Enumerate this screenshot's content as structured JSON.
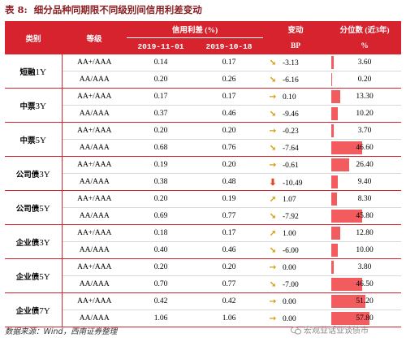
{
  "caption": {
    "label": "表 8:",
    "title": "细分品种同期限不同级别间信用利差变动"
  },
  "header": {
    "category": "类别",
    "grade": "等级",
    "spread": "信用利差 (%)",
    "date1": "2019-11-01",
    "date2": "2019-10-18",
    "change": "变动",
    "change_unit": "BP",
    "percentile": "分位数 (近3年)",
    "percentile_unit": "%"
  },
  "colors": {
    "header_bg": "#d7232d",
    "bar": "#f25c5f",
    "arrow_up": "#d6a015",
    "arrow_down": "#e5461e"
  },
  "groups": [
    {
      "name": "短融",
      "term": "1Y",
      "rows": [
        {
          "grade": "AA+/AAA",
          "v1": "0.14",
          "v2": "0.17",
          "dir": "down-right",
          "change": "-3.13",
          "pct": "3.60"
        },
        {
          "grade": "AA/AAA",
          "v1": "0.20",
          "v2": "0.26",
          "dir": "down-right",
          "change": "-6.16",
          "pct": "0.20"
        }
      ]
    },
    {
      "name": "中票",
      "term": "3Y",
      "rows": [
        {
          "grade": "AA+/AAA",
          "v1": "0.17",
          "v2": "0.17",
          "dir": "right",
          "change": "0.10",
          "pct": "13.30"
        },
        {
          "grade": "AA/AAA",
          "v1": "0.37",
          "v2": "0.46",
          "dir": "down-right",
          "change": "-9.46",
          "pct": "10.20"
        }
      ]
    },
    {
      "name": "中票",
      "term": "5Y",
      "rows": [
        {
          "grade": "AA+/AAA",
          "v1": "0.20",
          "v2": "0.20",
          "dir": "right",
          "change": "-0.23",
          "pct": "3.70"
        },
        {
          "grade": "AA/AAA",
          "v1": "0.68",
          "v2": "0.76",
          "dir": "down-right",
          "change": "-7.64",
          "pct": "46.60"
        }
      ]
    },
    {
      "name": "公司债",
      "term": "3Y",
      "rows": [
        {
          "grade": "AA+/AAA",
          "v1": "0.19",
          "v2": "0.20",
          "dir": "right",
          "change": "-0.61",
          "pct": "26.40"
        },
        {
          "grade": "AA/AAA",
          "v1": "0.38",
          "v2": "0.48",
          "dir": "down",
          "change": "-10.49",
          "pct": "9.40"
        }
      ]
    },
    {
      "name": "公司债",
      "term": "5Y",
      "rows": [
        {
          "grade": "AA+/AAA",
          "v1": "0.20",
          "v2": "0.19",
          "dir": "up-right",
          "change": "1.07",
          "pct": "8.30"
        },
        {
          "grade": "AA/AAA",
          "v1": "0.69",
          "v2": "0.77",
          "dir": "down-right",
          "change": "-7.92",
          "pct": "45.80"
        }
      ]
    },
    {
      "name": "企业债",
      "term": "3Y",
      "rows": [
        {
          "grade": "AA+/AAA",
          "v1": "0.18",
          "v2": "0.17",
          "dir": "up-right",
          "change": "1.00",
          "pct": "12.80"
        },
        {
          "grade": "AA/AAA",
          "v1": "0.40",
          "v2": "0.46",
          "dir": "down-right",
          "change": "-6.00",
          "pct": "10.00"
        }
      ]
    },
    {
      "name": "企业债",
      "term": "5Y",
      "rows": [
        {
          "grade": "AA+/AAA",
          "v1": "0.20",
          "v2": "0.20",
          "dir": "right",
          "change": "0.00",
          "pct": "3.80"
        },
        {
          "grade": "AA/AAA",
          "v1": "0.70",
          "v2": "0.77",
          "dir": "down-right",
          "change": "-7.00",
          "pct": "46.50"
        }
      ]
    },
    {
      "name": "企业债",
      "term": "7Y",
      "rows": [
        {
          "grade": "AA+/AAA",
          "v1": "0.42",
          "v2": "0.42",
          "dir": "right",
          "change": "0.00",
          "pct": "51.20"
        },
        {
          "grade": "AA/AAA",
          "v1": "1.06",
          "v2": "1.06",
          "dir": "right",
          "change": "0.00",
          "pct": "57.80"
        }
      ]
    }
  ],
  "source": "数据来源：Wind，西南证券整理",
  "watermark": "宏观业话业谈债市"
}
